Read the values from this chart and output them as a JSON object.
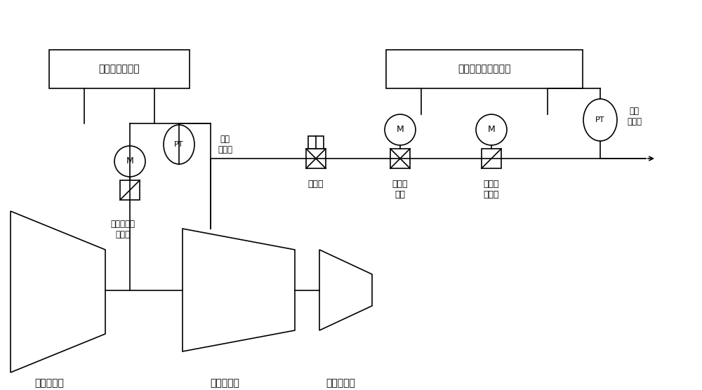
{
  "fig_width": 10.0,
  "fig_height": 5.56,
  "dpi": 100,
  "bg_color": "#ffffff",
  "line_color": "#000000",
  "box_color": "#ffffff",
  "text_color": "#000000",
  "font_size_label": 10,
  "font_size_small": 9,
  "font_family": "SimHei",
  "labels": {
    "lp_turbine": "低压汽轮机",
    "mp_turbine": "中压汽轮机",
    "hp_turbine": "高压汽轮机",
    "heat_regulator": "供热压力调节器",
    "pipe_regulator": "供热管道压力调节器",
    "quick_valve": "快关阀",
    "pressure_valve": "压力调\n节阀",
    "exhaust_valve": "中排供\n热总阀",
    "mid_low_valve": "中低压连通\n调压阀",
    "pt1_label": "压力\n变送器",
    "pt2_label": "压力\n变送器"
  }
}
